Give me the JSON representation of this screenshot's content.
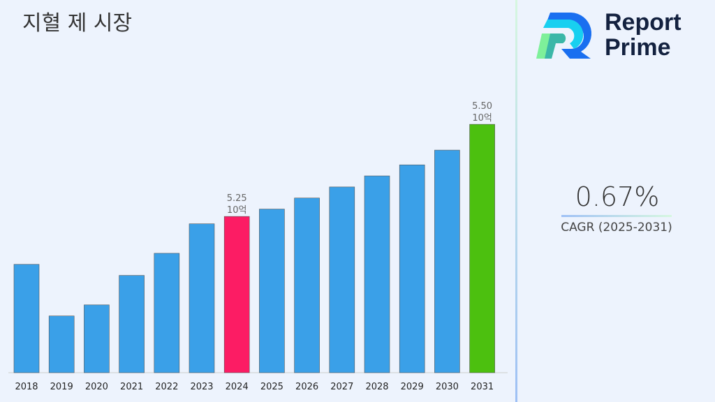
{
  "title": "지혈 제 시장",
  "logo": {
    "line1": "Report",
    "line2": "Prime"
  },
  "cagr": {
    "value": "0.67%",
    "label": "CAGR (2025-2031)"
  },
  "colors": {
    "default": "#3aa0e8",
    "highlight_2024": "#fc1c64",
    "highlight_2031": "#4cc00f"
  },
  "chart_data": {
    "type": "bar",
    "title": "지혈 제 시장",
    "categories": [
      "2018",
      "2019",
      "2020",
      "2021",
      "2022",
      "2023",
      "2024",
      "2025",
      "2026",
      "2027",
      "2028",
      "2029",
      "2030",
      "2031"
    ],
    "values": [
      5.12,
      4.98,
      5.01,
      5.09,
      5.15,
      5.23,
      5.25,
      5.27,
      5.3,
      5.33,
      5.36,
      5.39,
      5.43,
      5.5
    ],
    "data_labels": [
      {
        "category": "2024",
        "value": "5.25",
        "unit": "10억"
      },
      {
        "category": "2031",
        "value": "5.50",
        "unit": "10억"
      }
    ],
    "grid": false
  }
}
